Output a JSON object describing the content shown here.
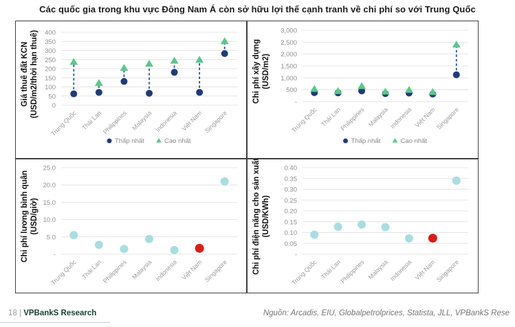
{
  "title": "Các quốc gia trong khu vực Đông Nam Á còn sở hữu lợi thế cạnh tranh về chi phí so với Trung Quốc",
  "footer": {
    "page_number": "18",
    "separator": "|",
    "brand": "VPBankS Research",
    "source": "Nguồn: Arcadis, EIU, Globalpetrolprices, Statista, JLL, VPBankS Rese"
  },
  "legend": {
    "low": "Thấp nhất",
    "high": "Cao nhất"
  },
  "colors": {
    "navy_dot": "#1f3c78",
    "green_triangle": "#5bc78c",
    "dashed_line": "#2e4f9b",
    "teal_dot": "#a9dde2",
    "red_dot": "#d91e18",
    "gridline": "#e4e4e4",
    "axis_text": "#8e8e8e",
    "axis_title": "#111111",
    "border": "#3f3f3f"
  },
  "chart_data": [
    {
      "id": "land-rent",
      "type": "range",
      "title": "Giá thuê đất KCN",
      "unit": "(USD/m2/thời hạn thuê)",
      "categories": [
        "Trung Quốc",
        "Thái Lan",
        "Philippines",
        "Malaysia",
        "Indonesia",
        "Việt Nam",
        "Singapore"
      ],
      "series": [
        {
          "name": "Thấp nhất",
          "values": [
            62,
            70,
            130,
            65,
            180,
            70,
            283
          ]
        },
        {
          "name": "Cao nhất",
          "values": [
            238,
            122,
            205,
            228,
            245,
            250,
            352
          ]
        }
      ],
      "ylim": [
        0,
        400
      ],
      "yticks": [
        "0",
        "50",
        "100",
        "150",
        "200",
        "250",
        "300",
        "350",
        "400"
      ],
      "legend": true,
      "grid": true,
      "legend_position": "bottom-center"
    },
    {
      "id": "construction-cost",
      "type": "range",
      "title": "Chi phí xây dựng",
      "unit": "(USD/m2)",
      "categories": [
        "Trung Quốc",
        "Thái Lan",
        "Philippines",
        "Malaysia",
        "Indonesia",
        "Việt Nam",
        "Singapore"
      ],
      "series": [
        {
          "name": "Thấp nhất",
          "values": [
            380,
            370,
            450,
            340,
            360,
            320,
            1130
          ]
        },
        {
          "name": "Cao nhất",
          "values": [
            540,
            450,
            660,
            430,
            500,
            410,
            2400
          ]
        }
      ],
      "ylim": [
        0,
        3000
      ],
      "yticks": [
        "-",
        "500",
        "1,000",
        "1,500",
        "2,000",
        "2,500",
        "3,000"
      ],
      "legend": true,
      "grid": true,
      "legend_position": "bottom-center"
    },
    {
      "id": "labor-cost",
      "type": "dot",
      "title": "Chi phí lương bình quân",
      "unit": "(USD/giờ)",
      "categories": [
        "Trung Quốc",
        "Thái Lan",
        "Philippines",
        "Malaysia",
        "Indonesia",
        "Việt Nam",
        "Singapore"
      ],
      "values": [
        5.5,
        2.7,
        1.5,
        4.4,
        1.2,
        1.7,
        21.0
      ],
      "highlight_index": 5,
      "ylim": [
        0,
        25
      ],
      "yticks": [
        "-",
        "5.0",
        "10.0",
        "15.0",
        "20.0",
        "25.0"
      ],
      "legend": false,
      "grid": true
    },
    {
      "id": "electricity-cost",
      "type": "dot",
      "title": "Chi phí điện năng cho sản xuất",
      "unit": "(USD/KWh)",
      "categories": [
        "Trung Quốc",
        "Thái Lan",
        "Philippines",
        "Malaysia",
        "Indonesia",
        "Việt Nam",
        "Singapore"
      ],
      "values": [
        0.09,
        0.127,
        0.137,
        0.125,
        0.073,
        0.074,
        0.34
      ],
      "highlight_index": 5,
      "ylim": [
        0,
        0.4
      ],
      "yticks": [
        "-",
        "0.05",
        "0.10",
        "0.15",
        "0.20",
        "0.25",
        "0.30",
        "0.35",
        "0.40"
      ],
      "legend": false,
      "grid": true
    }
  ]
}
